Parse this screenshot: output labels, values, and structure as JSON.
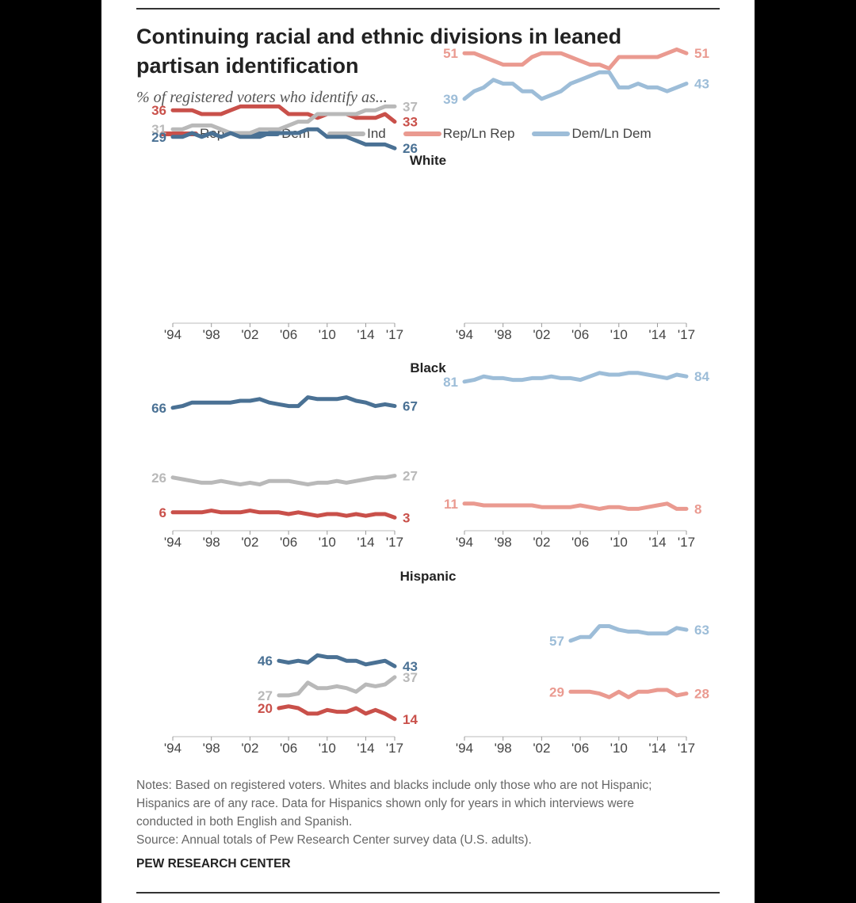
{
  "title": "Continuing racial and ethnic divisions in leaned partisan identification",
  "subtitle": "% of registered voters who identify as...",
  "legend": [
    {
      "label": "Rep",
      "color": "#c9504a"
    },
    {
      "label": "Dem",
      "color": "#4a7194"
    },
    {
      "label": "Ind",
      "color": "#b9b9b9"
    },
    {
      "label": "Rep/Ln Rep",
      "color": "#ea9a90"
    },
    {
      "label": "Dem/Ln Dem",
      "color": "#9dbdd8"
    }
  ],
  "notes": [
    "Notes: Based on registered voters. Whites and blacks include only those who are not Hispanic; Hispanics are of any race. Data for Hispanics shown only for years in which interviews were conducted in both English and Spanish.",
    "Source: Annual totals of Pew Research Center survey data (U.S. adults)."
  ],
  "credit": "PEW RESEARCH CENTER",
  "chart_data": [
    {
      "type": "line",
      "group": "White",
      "panel": "left",
      "x_tick_labels": [
        "'94",
        "'98",
        "'02",
        "'06",
        "'10",
        "'14",
        "'17"
      ],
      "x_ticks": [
        1994,
        1998,
        2002,
        2006,
        2010,
        2014,
        2017
      ],
      "xlim": [
        1994,
        2017
      ],
      "series": [
        {
          "name": "Rep",
          "start_label": "36",
          "end_label": "33",
          "x": [
            1994,
            1995,
            1996,
            1997,
            1998,
            1999,
            2000,
            2001,
            2002,
            2003,
            2004,
            2005,
            2006,
            2007,
            2008,
            2009,
            2010,
            2011,
            2012,
            2013,
            2014,
            2015,
            2016,
            2017
          ],
          "values": [
            36,
            36,
            36,
            35,
            35,
            35,
            36,
            37,
            37,
            37,
            37,
            37,
            35,
            35,
            35,
            34,
            35,
            35,
            35,
            34,
            34,
            34,
            35,
            33
          ]
        },
        {
          "name": "Ind",
          "start_label": "31",
          "end_label": "37",
          "x": [
            1994,
            1995,
            1996,
            1997,
            1998,
            1999,
            2000,
            2001,
            2002,
            2003,
            2004,
            2005,
            2006,
            2007,
            2008,
            2009,
            2010,
            2011,
            2012,
            2013,
            2014,
            2015,
            2016,
            2017
          ],
          "values": [
            31,
            31,
            32,
            32,
            32,
            31,
            30,
            30,
            30,
            31,
            31,
            31,
            32,
            33,
            33,
            35,
            35,
            35,
            35,
            35,
            36,
            36,
            37,
            37
          ]
        },
        {
          "name": "Dem",
          "start_label": "29",
          "end_label": "26",
          "x": [
            1994,
            1995,
            1996,
            1997,
            1998,
            1999,
            2000,
            2001,
            2002,
            2003,
            2004,
            2005,
            2006,
            2007,
            2008,
            2009,
            2010,
            2011,
            2012,
            2013,
            2014,
            2015,
            2016,
            2017
          ],
          "values": [
            29,
            29,
            30,
            29,
            30,
            29,
            30,
            29,
            29,
            29,
            30,
            30,
            30,
            30,
            31,
            31,
            29,
            29,
            29,
            28,
            27,
            27,
            27,
            26
          ]
        }
      ]
    },
    {
      "type": "line",
      "group": "White",
      "panel": "right",
      "x_tick_labels": [
        "'94",
        "'98",
        "'02",
        "'06",
        "'10",
        "'14",
        "'17"
      ],
      "x_ticks": [
        1994,
        1998,
        2002,
        2006,
        2010,
        2014,
        2017
      ],
      "xlim": [
        1994,
        2017
      ],
      "series": [
        {
          "name": "Rep/Ln Rep",
          "start_label": "51",
          "end_label": "51",
          "x": [
            1994,
            1995,
            1996,
            1997,
            1998,
            1999,
            2000,
            2001,
            2002,
            2003,
            2004,
            2005,
            2006,
            2007,
            2008,
            2009,
            2010,
            2011,
            2012,
            2013,
            2014,
            2015,
            2016,
            2017
          ],
          "values": [
            51,
            51,
            50,
            49,
            48,
            48,
            48,
            50,
            51,
            51,
            51,
            50,
            49,
            48,
            48,
            47,
            50,
            50,
            50,
            50,
            50,
            51,
            52,
            51
          ]
        },
        {
          "name": "Dem/Ln Dem",
          "start_label": "39",
          "end_label": "43",
          "x": [
            1994,
            1995,
            1996,
            1997,
            1998,
            1999,
            2000,
            2001,
            2002,
            2003,
            2004,
            2005,
            2006,
            2007,
            2008,
            2009,
            2010,
            2011,
            2012,
            2013,
            2014,
            2015,
            2016,
            2017
          ],
          "values": [
            39,
            41,
            42,
            44,
            43,
            43,
            41,
            41,
            39,
            40,
            41,
            43,
            44,
            45,
            46,
            46,
            42,
            42,
            43,
            42,
            42,
            41,
            42,
            43
          ]
        }
      ]
    },
    {
      "type": "line",
      "group": "Black",
      "panel": "left",
      "x_tick_labels": [
        "'94",
        "'98",
        "'02",
        "'06",
        "'10",
        "'14",
        "'17"
      ],
      "x_ticks": [
        1994,
        1998,
        2002,
        2006,
        2010,
        2014,
        2017
      ],
      "xlim": [
        1994,
        2017
      ],
      "series": [
        {
          "name": "Dem",
          "start_label": "66",
          "end_label": "67",
          "x": [
            1994,
            1995,
            1996,
            1997,
            1998,
            1999,
            2000,
            2001,
            2002,
            2003,
            2004,
            2005,
            2006,
            2007,
            2008,
            2009,
            2010,
            2011,
            2012,
            2013,
            2014,
            2015,
            2016,
            2017
          ],
          "values": [
            66,
            67,
            69,
            69,
            69,
            69,
            69,
            70,
            70,
            71,
            69,
            68,
            67,
            67,
            72,
            71,
            71,
            71,
            72,
            70,
            69,
            67,
            68,
            67
          ]
        },
        {
          "name": "Ind",
          "start_label": "26",
          "end_label": "27",
          "x": [
            1994,
            1995,
            1996,
            1997,
            1998,
            1999,
            2000,
            2001,
            2002,
            2003,
            2004,
            2005,
            2006,
            2007,
            2008,
            2009,
            2010,
            2011,
            2012,
            2013,
            2014,
            2015,
            2016,
            2017
          ],
          "values": [
            26,
            25,
            24,
            23,
            23,
            24,
            23,
            22,
            23,
            22,
            24,
            24,
            24,
            23,
            22,
            23,
            23,
            24,
            23,
            24,
            25,
            26,
            26,
            27
          ]
        },
        {
          "name": "Rep",
          "start_label": "6",
          "end_label": "3",
          "x": [
            1994,
            1995,
            1996,
            1997,
            1998,
            1999,
            2000,
            2001,
            2002,
            2003,
            2004,
            2005,
            2006,
            2007,
            2008,
            2009,
            2010,
            2011,
            2012,
            2013,
            2014,
            2015,
            2016,
            2017
          ],
          "values": [
            6,
            6,
            6,
            6,
            7,
            6,
            6,
            6,
            7,
            6,
            6,
            6,
            5,
            6,
            5,
            4,
            5,
            5,
            4,
            5,
            4,
            5,
            5,
            3
          ]
        }
      ]
    },
    {
      "type": "line",
      "group": "Black",
      "panel": "right",
      "x_tick_labels": [
        "'94",
        "'98",
        "'02",
        "'06",
        "'10",
        "'14",
        "'17"
      ],
      "x_ticks": [
        1994,
        1998,
        2002,
        2006,
        2010,
        2014,
        2017
      ],
      "xlim": [
        1994,
        2017
      ],
      "series": [
        {
          "name": "Dem/Ln Dem",
          "start_label": "81",
          "end_label": "84",
          "x": [
            1994,
            1995,
            1996,
            1997,
            1998,
            1999,
            2000,
            2001,
            2002,
            2003,
            2004,
            2005,
            2006,
            2007,
            2008,
            2009,
            2010,
            2011,
            2012,
            2013,
            2014,
            2015,
            2016,
            2017
          ],
          "values": [
            81,
            82,
            84,
            83,
            83,
            82,
            82,
            83,
            83,
            84,
            83,
            83,
            82,
            84,
            86,
            85,
            85,
            86,
            86,
            85,
            84,
            83,
            85,
            84
          ]
        },
        {
          "name": "Rep/Ln Rep",
          "start_label": "11",
          "end_label": "8",
          "x": [
            1994,
            1995,
            1996,
            1997,
            1998,
            1999,
            2000,
            2001,
            2002,
            2003,
            2004,
            2005,
            2006,
            2007,
            2008,
            2009,
            2010,
            2011,
            2012,
            2013,
            2014,
            2015,
            2016,
            2017
          ],
          "values": [
            11,
            11,
            10,
            10,
            10,
            10,
            10,
            10,
            9,
            9,
            9,
            9,
            10,
            9,
            8,
            9,
            9,
            8,
            8,
            9,
            10,
            11,
            8,
            8
          ]
        }
      ]
    },
    {
      "type": "line",
      "group": "Hispanic",
      "panel": "left",
      "x_tick_labels": [
        "'94",
        "'98",
        "'02",
        "'06",
        "'10",
        "'14",
        "'17"
      ],
      "x_ticks": [
        1994,
        1998,
        2002,
        2006,
        2010,
        2014,
        2017
      ],
      "xlim": [
        1994,
        2017
      ],
      "series": [
        {
          "name": "Dem",
          "start_label": "46",
          "end_label": "43",
          "x": [
            2005,
            2006,
            2007,
            2008,
            2009,
            2010,
            2011,
            2012,
            2013,
            2014,
            2015,
            2016,
            2017
          ],
          "values": [
            46,
            45,
            46,
            45,
            49,
            48,
            48,
            46,
            46,
            44,
            45,
            46,
            43
          ]
        },
        {
          "name": "Ind",
          "start_label": "27",
          "end_label": "37",
          "x": [
            2005,
            2006,
            2007,
            2008,
            2009,
            2010,
            2011,
            2012,
            2013,
            2014,
            2015,
            2016,
            2017
          ],
          "values": [
            27,
            27,
            28,
            34,
            31,
            31,
            32,
            31,
            29,
            33,
            32,
            33,
            37
          ]
        },
        {
          "name": "Rep",
          "start_label": "20",
          "end_label": "14",
          "x": [
            2005,
            2006,
            2007,
            2008,
            2009,
            2010,
            2011,
            2012,
            2013,
            2014,
            2015,
            2016,
            2017
          ],
          "values": [
            20,
            21,
            20,
            17,
            17,
            19,
            18,
            18,
            20,
            17,
            19,
            17,
            14
          ]
        }
      ]
    },
    {
      "type": "line",
      "group": "Hispanic",
      "panel": "right",
      "x_tick_labels": [
        "'94",
        "'98",
        "'02",
        "'06",
        "'10",
        "'14",
        "'17"
      ],
      "x_ticks": [
        1994,
        1998,
        2002,
        2006,
        2010,
        2014,
        2017
      ],
      "xlim": [
        1994,
        2017
      ],
      "series": [
        {
          "name": "Dem/Ln Dem",
          "start_label": "57",
          "end_label": "63",
          "x": [
            2005,
            2006,
            2007,
            2008,
            2009,
            2010,
            2011,
            2012,
            2013,
            2014,
            2015,
            2016,
            2017
          ],
          "values": [
            57,
            59,
            59,
            65,
            65,
            63,
            62,
            62,
            61,
            61,
            61,
            64,
            63
          ]
        },
        {
          "name": "Rep/Ln Rep",
          "start_label": "29",
          "end_label": "28",
          "x": [
            2005,
            2006,
            2007,
            2008,
            2009,
            2010,
            2011,
            2012,
            2013,
            2014,
            2015,
            2016,
            2017
          ],
          "values": [
            29,
            29,
            29,
            28,
            26,
            29,
            26,
            29,
            29,
            30,
            30,
            27,
            28
          ]
        }
      ]
    }
  ]
}
